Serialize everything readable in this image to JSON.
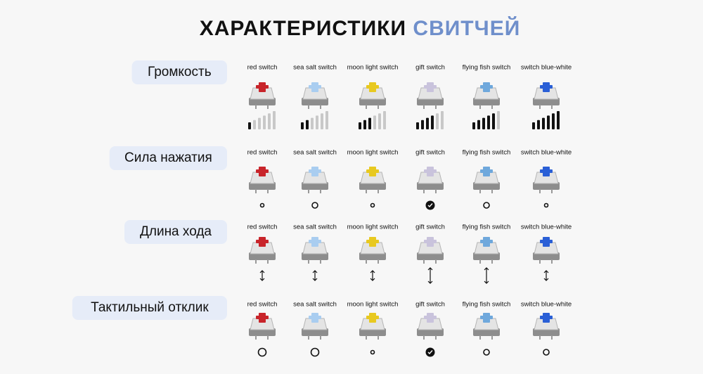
{
  "header": {
    "title": "ХАРАКТЕРИСТИКИ",
    "title_accent": "СВИТЧЕЙ",
    "accent_color": "#6f8fcb"
  },
  "switches": [
    {
      "name": "red switch",
      "stem_color": "#c8242a"
    },
    {
      "name": "sea salt switch",
      "stem_color": "#a9cdf0"
    },
    {
      "name": "moon light switch",
      "stem_color": "#e8c920"
    },
    {
      "name": "gift switch",
      "stem_color": "#c9c3dc"
    },
    {
      "name": "flying fish switch",
      "stem_color": "#6fa8dc"
    },
    {
      "name": "switch blue-white",
      "stem_color": "#2a5fd6"
    }
  ],
  "sections": [
    {
      "label": "Громкость",
      "kind": "volume",
      "levels": [
        1,
        2,
        3,
        4,
        5,
        6
      ]
    },
    {
      "label": "Сила нажатия",
      "kind": "circle",
      "levels": [
        1,
        2,
        1,
        4,
        2,
        1
      ]
    },
    {
      "label": "Длина хода",
      "kind": "arrow",
      "levels": [
        1,
        1,
        1,
        2,
        2,
        1
      ]
    },
    {
      "label": "Тактильный отклик",
      "kind": "circle",
      "levels": [
        3,
        3,
        1,
        4,
        2,
        2
      ]
    }
  ]
}
